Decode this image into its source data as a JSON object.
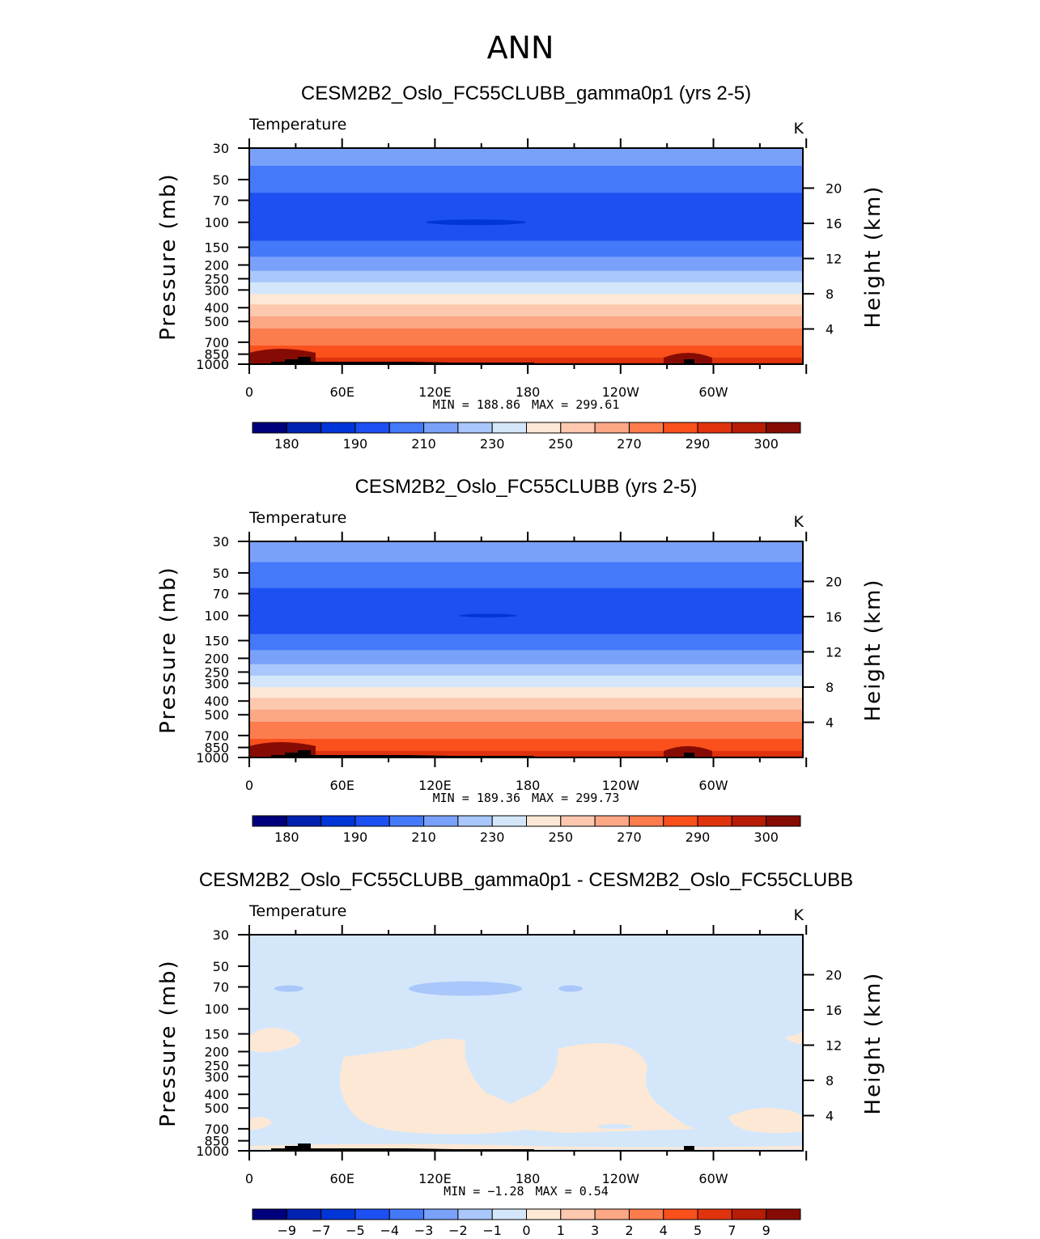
{
  "title": "ANN",
  "palette": [
    "#00007c",
    "#0022b0",
    "#0035d8",
    "#1d50f2",
    "#4479fa",
    "#7aa1fa",
    "#a9c7fa",
    "#d4e7fa",
    "#fde8d5",
    "#fdc8ae",
    "#fca886",
    "#fc7c4d",
    "#f9501c",
    "#e0330d",
    "#b71d06",
    "#860b04"
  ],
  "chart_data": [
    {
      "type": "heatmap",
      "title": "CESM2B2_Oslo_FC55CLUBB_gamma0p1 (yrs 2-5)",
      "variable": "Temperature",
      "units": "K",
      "ylabel": "Pressure (mb)",
      "ylabel_right": "Height (km)",
      "x_ticks": [
        "0",
        "60E",
        "120E",
        "180",
        "120W",
        "60W"
      ],
      "y_ticks": [
        "30",
        "50",
        "70",
        "100",
        "150",
        "200",
        "250",
        "300",
        "400",
        "500",
        "700",
        "850",
        "1000"
      ],
      "y_right_ticks": [
        "20",
        "16",
        "12",
        "8",
        "4"
      ],
      "min_label": "MIN = ",
      "min_value": "188.86",
      "max_label": "MAX = ",
      "max_value": "299.61",
      "colorbar_labels": [
        "180",
        "190",
        "210",
        "230",
        "250",
        "270",
        "290",
        "300"
      ],
      "bands": [
        {
          "p": 30,
          "c": 5
        },
        {
          "p": 40,
          "c": 4
        },
        {
          "p": 62,
          "c": 3
        },
        {
          "p": 135,
          "c": 4
        },
        {
          "p": 175,
          "c": 5
        },
        {
          "p": 220,
          "c": 6
        },
        {
          "p": 265,
          "c": 7
        },
        {
          "p": 320,
          "c": 8
        },
        {
          "p": 380,
          "c": 9
        },
        {
          "p": 460,
          "c": 10
        },
        {
          "p": 560,
          "c": 11
        },
        {
          "p": 740,
          "c": 12
        },
        {
          "p": 900,
          "c": 13
        },
        {
          "p": 980,
          "c": 14
        }
      ]
    },
    {
      "type": "heatmap",
      "title": "CESM2B2_Oslo_FC55CLUBB (yrs 2-5)",
      "variable": "Temperature",
      "units": "K",
      "ylabel": "Pressure (mb)",
      "ylabel_right": "Height (km)",
      "x_ticks": [
        "0",
        "60E",
        "120E",
        "180",
        "120W",
        "60W"
      ],
      "y_ticks": [
        "30",
        "50",
        "70",
        "100",
        "150",
        "200",
        "250",
        "300",
        "400",
        "500",
        "700",
        "850",
        "1000"
      ],
      "y_right_ticks": [
        "20",
        "16",
        "12",
        "8",
        "4"
      ],
      "min_label": "MIN = ",
      "min_value": "189.36",
      "max_label": "MAX = ",
      "max_value": "299.73",
      "colorbar_labels": [
        "180",
        "190",
        "210",
        "230",
        "250",
        "270",
        "290",
        "300"
      ],
      "bands": [
        {
          "p": 30,
          "c": 5
        },
        {
          "p": 42,
          "c": 4
        },
        {
          "p": 64,
          "c": 3
        },
        {
          "p": 135,
          "c": 4
        },
        {
          "p": 175,
          "c": 5
        },
        {
          "p": 220,
          "c": 6
        },
        {
          "p": 265,
          "c": 7
        },
        {
          "p": 320,
          "c": 8
        },
        {
          "p": 380,
          "c": 9
        },
        {
          "p": 460,
          "c": 10
        },
        {
          "p": 560,
          "c": 11
        },
        {
          "p": 740,
          "c": 12
        },
        {
          "p": 900,
          "c": 13
        },
        {
          "p": 980,
          "c": 14
        }
      ]
    },
    {
      "type": "heatmap",
      "title": "CESM2B2_Oslo_FC55CLUBB_gamma0p1 - CESM2B2_Oslo_FC55CLUBB",
      "variable": "Temperature",
      "units": "K",
      "ylabel": "Pressure (mb)",
      "ylabel_right": "Height (km)",
      "x_ticks": [
        "0",
        "60E",
        "120E",
        "180",
        "120W",
        "60W"
      ],
      "y_ticks": [
        "30",
        "50",
        "70",
        "100",
        "150",
        "200",
        "250",
        "300",
        "400",
        "500",
        "700",
        "850",
        "1000"
      ],
      "y_right_ticks": [
        "20",
        "16",
        "12",
        "8",
        "4"
      ],
      "min_label": "MIN = ",
      "min_value": "−1.28",
      "max_label": "MAX = ",
      "max_value": "0.54",
      "colorbar_labels": [
        "−9",
        "−7",
        "−5",
        "−4",
        "−3",
        "−2",
        "−1",
        "0",
        "1",
        "3",
        "2",
        "4",
        "5",
        "7",
        "9"
      ],
      "bands": [
        {
          "p": 30,
          "c": 7
        }
      ]
    }
  ]
}
